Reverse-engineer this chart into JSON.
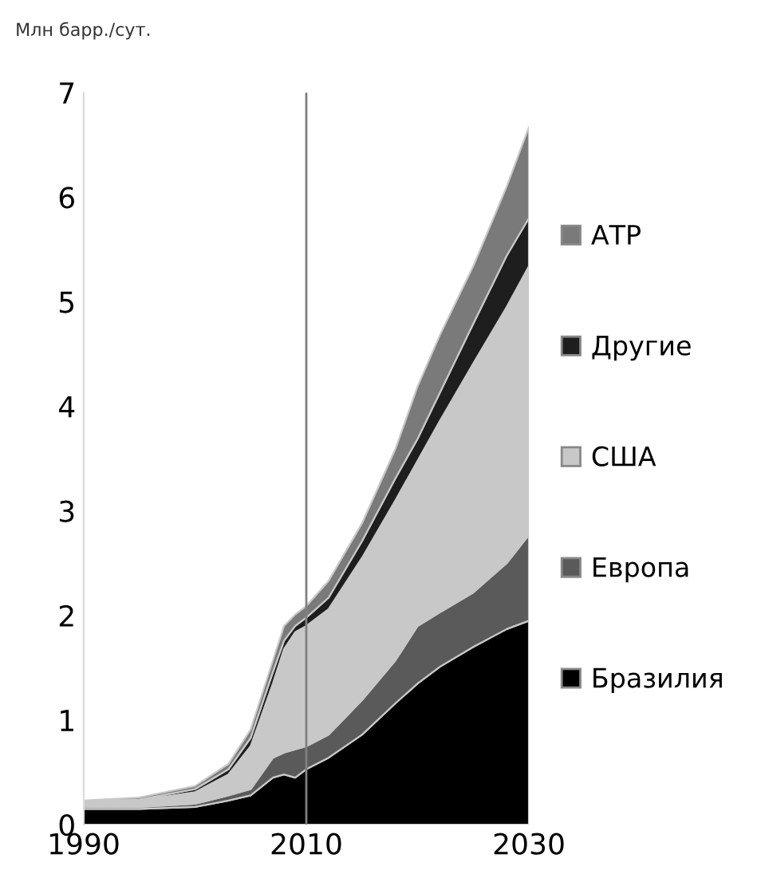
{
  "chart_data": {
    "type": "area",
    "stacked": true,
    "ylabel": "Млн барр./сут.",
    "x": [
      1990,
      1995,
      2000,
      2003,
      2005,
      2007,
      2008,
      2009,
      2010,
      2012,
      2015,
      2018,
      2020,
      2022,
      2025,
      2028,
      2030
    ],
    "series": [
      {
        "name": "Бразилия",
        "color": "#000000",
        "values": [
          0.15,
          0.15,
          0.17,
          0.23,
          0.28,
          0.45,
          0.48,
          0.45,
          0.53,
          0.64,
          0.86,
          1.16,
          1.35,
          1.51,
          1.7,
          1.87,
          1.95
        ]
      },
      {
        "name": "Европа",
        "color": "#5a5a5a",
        "values": [
          0.02,
          0.02,
          0.03,
          0.05,
          0.06,
          0.19,
          0.21,
          0.27,
          0.22,
          0.22,
          0.33,
          0.41,
          0.55,
          0.52,
          0.52,
          0.63,
          0.82
        ]
      },
      {
        "name": "США",
        "color": "#c8c8c8",
        "values": [
          0.04,
          0.06,
          0.11,
          0.2,
          0.41,
          0.71,
          0.99,
          1.12,
          1.15,
          1.2,
          1.36,
          1.53,
          1.58,
          1.83,
          2.19,
          2.45,
          2.57
        ]
      },
      {
        "name": "Другие",
        "color": "#1e1e1e",
        "values": [
          0.01,
          0.01,
          0.03,
          0.05,
          0.08,
          0.11,
          0.08,
          0.06,
          0.08,
          0.11,
          0.16,
          0.21,
          0.21,
          0.27,
          0.38,
          0.49,
          0.46
        ]
      },
      {
        "name": "АТР",
        "color": "#7a7a7a",
        "values": [
          0.01,
          0.02,
          0.03,
          0.05,
          0.08,
          0.11,
          0.14,
          0.11,
          0.11,
          0.16,
          0.17,
          0.28,
          0.5,
          0.55,
          0.55,
          0.66,
          0.87
        ]
      }
    ],
    "xlim": [
      1990,
      2030
    ],
    "xticks": [
      1990,
      2010,
      2030
    ],
    "ylim": [
      0,
      7
    ],
    "yticks": [
      0,
      1,
      2,
      3,
      4,
      5,
      6,
      7
    ],
    "ref_lines": [
      {
        "axis": "x",
        "value": 2010,
        "color": "#808080"
      }
    ],
    "grid": false,
    "legend": "right"
  }
}
